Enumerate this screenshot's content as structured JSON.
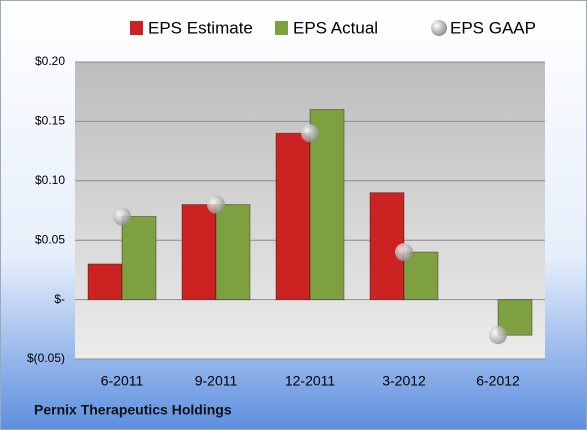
{
  "chart_data": {
    "type": "bar",
    "footer": "Pernix Therapeutics Holdings",
    "categories": [
      "6-2011",
      "9-2011",
      "12-2011",
      "3-2012",
      "6-2012"
    ],
    "series": [
      {
        "name": "EPS Estimate",
        "color": "#cc2222",
        "values": [
          0.03,
          0.08,
          0.14,
          0.09,
          null
        ]
      },
      {
        "name": "EPS Actual",
        "color": "#7fa040",
        "values": [
          0.07,
          0.08,
          0.16,
          0.04,
          -0.03
        ]
      },
      {
        "name": "EPS GAAP",
        "color": "#b0b0b0",
        "marker": "circle",
        "values": [
          0.07,
          0.08,
          0.14,
          0.04,
          -0.03
        ]
      }
    ],
    "ylim": [
      -0.05,
      0.2
    ],
    "yticks": [
      {
        "value": -0.05,
        "label": "$(0.05)"
      },
      {
        "value": 0,
        "label": "$-"
      },
      {
        "value": 0.05,
        "label": "$0.05"
      },
      {
        "value": 0.1,
        "label": "$0.10"
      },
      {
        "value": 0.15,
        "label": "$0.15"
      },
      {
        "value": 0.2,
        "label": "$0.20"
      }
    ],
    "grid": true
  }
}
